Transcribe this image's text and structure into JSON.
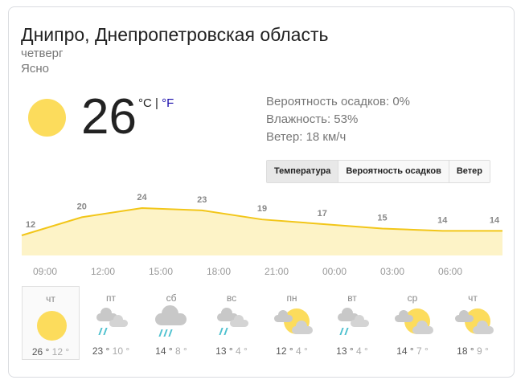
{
  "location": "Днипро, Днепропетровская область",
  "day": "четверг",
  "condition": "Ясно",
  "current": {
    "temp": "26",
    "unit_c": "°C",
    "sep": " | ",
    "unit_f": "°F",
    "icon": "sun-icon"
  },
  "details": [
    "Вероятность осадков: 0%",
    "Влажность: 53%",
    "Ветер: 18 км/ч"
  ],
  "tabs": [
    "Температура",
    "Вероятность осадков",
    "Ветер"
  ],
  "colors": {
    "sun": "#fcdc5c",
    "line": "#f2c619",
    "fill": "#fdf3c7",
    "rain": "#4ec1cf",
    "cloud": "#c8c8c8"
  },
  "chart_data": {
    "type": "area",
    "x": [
      "",
      "09:00",
      "12:00",
      "15:00",
      "18:00",
      "21:00",
      "00:00",
      "03:00",
      "06:00"
    ],
    "values": [
      12,
      20,
      24,
      23,
      19,
      17,
      15,
      14,
      14
    ],
    "time_labels": [
      "09:00",
      "12:00",
      "15:00",
      "18:00",
      "21:00",
      "00:00",
      "03:00",
      "06:00"
    ]
  },
  "forecast": [
    {
      "day": "чт",
      "hi": "26 °",
      "lo": "12 °",
      "icon": "sunny"
    },
    {
      "day": "пт",
      "hi": "23 °",
      "lo": "10 °",
      "icon": "rain-clouds"
    },
    {
      "day": "сб",
      "hi": "14 °",
      "lo": "8 °",
      "icon": "rain"
    },
    {
      "day": "вс",
      "hi": "13 °",
      "lo": "4 °",
      "icon": "rain-clouds"
    },
    {
      "day": "пн",
      "hi": "12 °",
      "lo": "4 °",
      "icon": "partly-cloudy"
    },
    {
      "day": "вт",
      "hi": "13 °",
      "lo": "4 °",
      "icon": "rain-clouds"
    },
    {
      "day": "ср",
      "hi": "14 °",
      "lo": "7 °",
      "icon": "partly-cloudy"
    },
    {
      "day": "чт",
      "hi": "18 °",
      "lo": "9 °",
      "icon": "partly-cloudy"
    }
  ]
}
